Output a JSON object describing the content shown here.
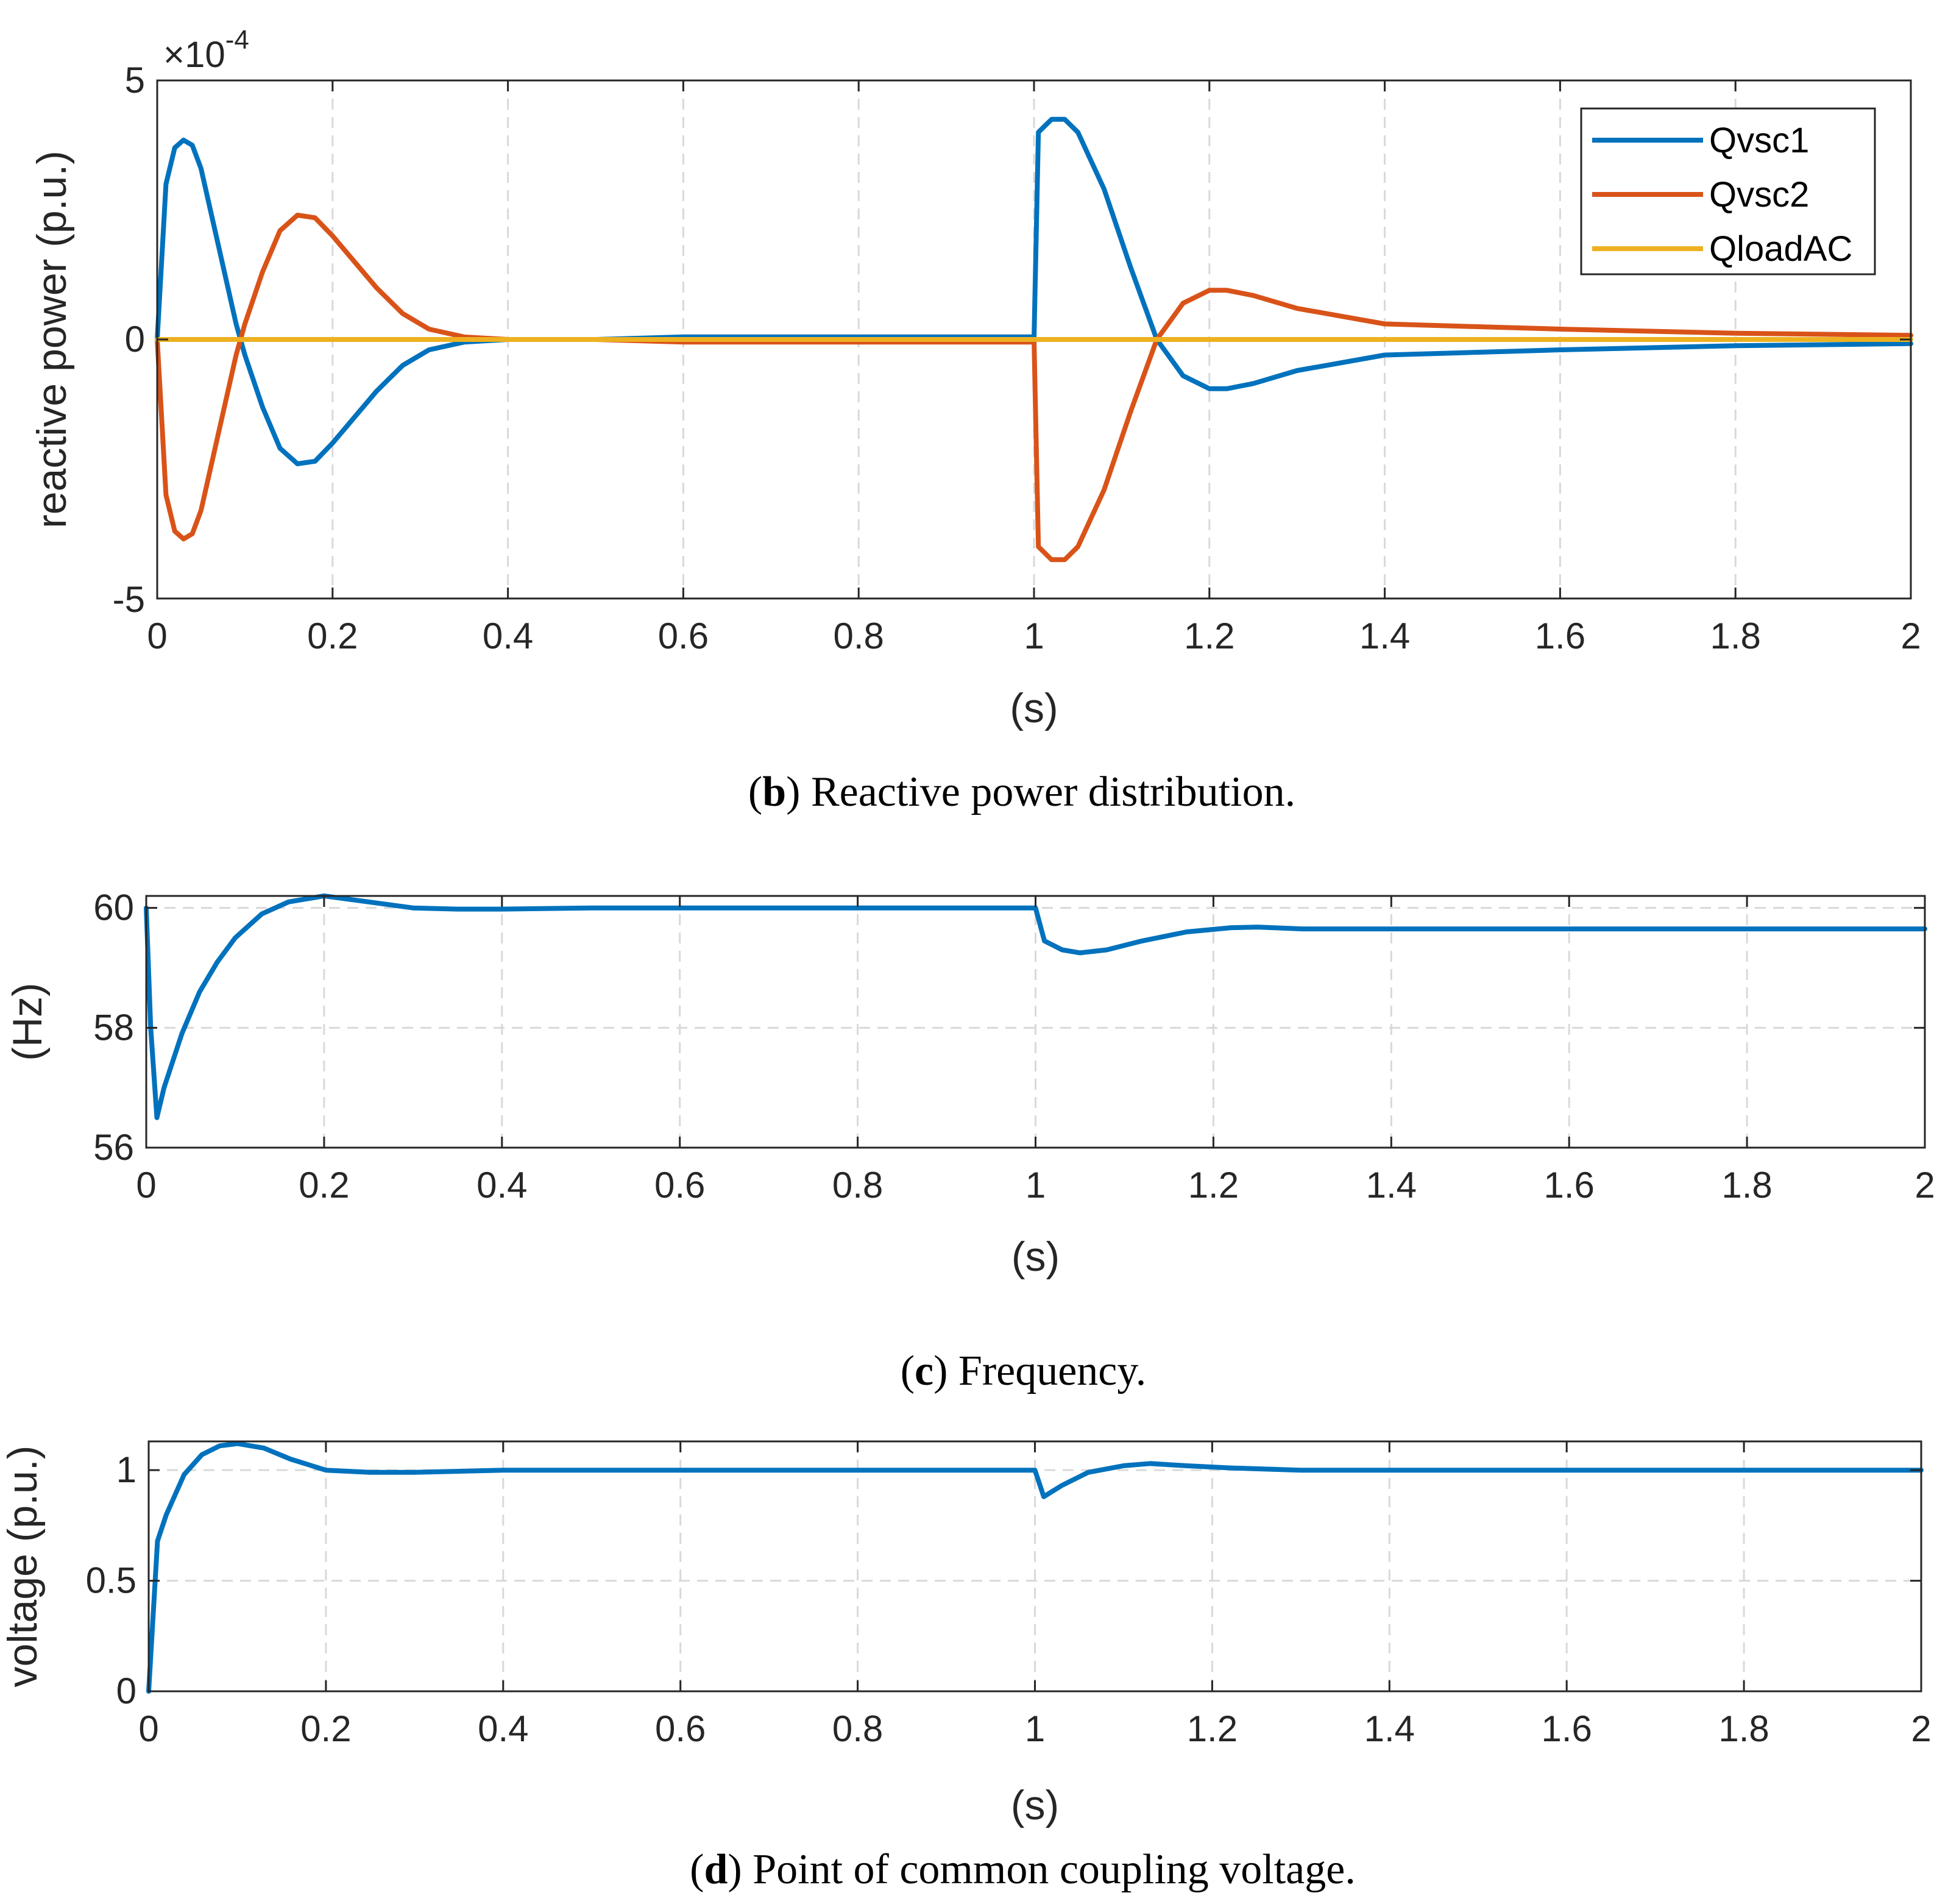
{
  "chart_data": [
    {
      "type": "line",
      "id": "b",
      "title": "",
      "caption": {
        "letter": "b",
        "text": "Reactive power distribution."
      },
      "xlabel": "(s)",
      "ylabel": "reactive power (p.u.)",
      "xlim": [
        0,
        2
      ],
      "ylim": [
        -5,
        5
      ],
      "exponent_label": "×10",
      "exponent_power": "-4",
      "xticks": [
        "0",
        "0.2",
        "0.4",
        "0.6",
        "0.8",
        "1",
        "1.2",
        "1.4",
        "1.6",
        "1.8",
        "2"
      ],
      "yticks": [
        "-5",
        "0",
        "5"
      ],
      "legend_position": "top-right",
      "series": [
        {
          "name": "Qvsc1",
          "color": "#0072BD",
          "x": [
            0,
            0.005,
            0.01,
            0.02,
            0.03,
            0.04,
            0.05,
            0.07,
            0.09,
            0.1,
            0.12,
            0.14,
            0.16,
            0.18,
            0.2,
            0.22,
            0.25,
            0.28,
            0.31,
            0.35,
            0.4,
            0.5,
            0.6,
            0.8,
            0.999,
            1.0,
            1.005,
            1.02,
            1.035,
            1.05,
            1.08,
            1.11,
            1.14,
            1.17,
            1.2,
            1.22,
            1.25,
            1.3,
            1.4,
            1.5,
            1.6,
            1.8,
            2.0
          ],
          "y": [
            0,
            1.5,
            3.0,
            3.7,
            3.85,
            3.75,
            3.3,
            1.8,
            0.3,
            -0.3,
            -1.3,
            -2.1,
            -2.4,
            -2.35,
            -2.0,
            -1.6,
            -1.0,
            -0.5,
            -0.2,
            -0.05,
            0.0,
            0.0,
            0.05,
            0.05,
            0.05,
            0.0,
            4.0,
            4.25,
            4.25,
            4.0,
            2.9,
            1.4,
            0.0,
            -0.7,
            -0.95,
            -0.95,
            -0.85,
            -0.6,
            -0.3,
            -0.25,
            -0.2,
            -0.12,
            -0.08
          ]
        },
        {
          "name": "Qvsc2",
          "color": "#D95319",
          "x": [
            0,
            0.005,
            0.01,
            0.02,
            0.03,
            0.04,
            0.05,
            0.07,
            0.09,
            0.1,
            0.12,
            0.14,
            0.16,
            0.18,
            0.2,
            0.22,
            0.25,
            0.28,
            0.31,
            0.35,
            0.4,
            0.5,
            0.6,
            0.8,
            0.999,
            1.0,
            1.005,
            1.02,
            1.035,
            1.05,
            1.08,
            1.11,
            1.14,
            1.17,
            1.2,
            1.22,
            1.25,
            1.3,
            1.4,
            1.5,
            1.6,
            1.8,
            2.0
          ],
          "y": [
            0,
            -1.5,
            -3.0,
            -3.7,
            -3.85,
            -3.75,
            -3.3,
            -1.8,
            -0.3,
            0.3,
            1.3,
            2.1,
            2.4,
            2.35,
            2.0,
            1.6,
            1.0,
            0.5,
            0.2,
            0.05,
            0.0,
            0.0,
            -0.05,
            -0.05,
            -0.05,
            0.0,
            -4.0,
            -4.25,
            -4.25,
            -4.0,
            -2.9,
            -1.4,
            0.0,
            0.7,
            0.95,
            0.95,
            0.85,
            0.6,
            0.3,
            0.25,
            0.2,
            0.12,
            0.08
          ]
        },
        {
          "name": "QloadAC",
          "color": "#EDB120",
          "x": [
            0,
            2.0
          ],
          "y": [
            0,
            0
          ]
        }
      ]
    },
    {
      "type": "line",
      "id": "c",
      "title": "",
      "caption": {
        "letter": "c",
        "text": "Frequency."
      },
      "xlabel": "(s)",
      "ylabel": "(Hz)",
      "xlim": [
        0,
        2
      ],
      "ylim": [
        56,
        60.2
      ],
      "xticks": [
        "0",
        "0.2",
        "0.4",
        "0.6",
        "0.8",
        "1",
        "1.2",
        "1.4",
        "1.6",
        "1.8",
        "2"
      ],
      "yticks": [
        "56",
        "58",
        "60"
      ],
      "series": [
        {
          "name": "frequency",
          "color": "#0072BD",
          "x": [
            0,
            0.005,
            0.012,
            0.02,
            0.04,
            0.06,
            0.08,
            0.1,
            0.13,
            0.16,
            0.2,
            0.25,
            0.3,
            0.35,
            0.4,
            0.5,
            0.7,
            0.999,
            1.0,
            1.01,
            1.03,
            1.05,
            1.08,
            1.12,
            1.17,
            1.22,
            1.25,
            1.3,
            1.4,
            1.6,
            1.8,
            2.0
          ],
          "y": [
            60,
            58.0,
            56.5,
            57.0,
            57.9,
            58.6,
            59.1,
            59.5,
            59.9,
            60.1,
            60.2,
            60.1,
            60.0,
            59.98,
            59.98,
            60.0,
            60.0,
            60.0,
            60.0,
            59.45,
            59.3,
            59.25,
            59.3,
            59.45,
            59.6,
            59.67,
            59.68,
            59.65,
            59.65,
            59.65,
            59.65,
            59.65
          ]
        }
      ]
    },
    {
      "type": "line",
      "id": "d",
      "title": "",
      "caption": {
        "letter": "d",
        "text": "Point of common coupling voltage."
      },
      "xlabel": "(s)",
      "ylabel": "voltage (p.u.)",
      "xlim": [
        0,
        2
      ],
      "ylim": [
        0,
        1.13
      ],
      "xticks": [
        "0",
        "0.2",
        "0.4",
        "0.6",
        "0.8",
        "1",
        "1.2",
        "1.4",
        "1.6",
        "1.8",
        "2"
      ],
      "yticks": [
        "0",
        "0.5",
        "1"
      ],
      "series": [
        {
          "name": "voltage",
          "color": "#0072BD",
          "x": [
            0,
            0.01,
            0.02,
            0.04,
            0.06,
            0.08,
            0.1,
            0.13,
            0.16,
            0.2,
            0.25,
            0.3,
            0.4,
            0.6,
            0.999,
            1.0,
            1.01,
            1.03,
            1.06,
            1.1,
            1.13,
            1.17,
            1.22,
            1.3,
            1.5,
            2.0
          ],
          "y": [
            0,
            0.68,
            0.8,
            0.98,
            1.07,
            1.11,
            1.12,
            1.1,
            1.05,
            1.0,
            0.99,
            0.99,
            1.0,
            1.0,
            1.0,
            1.0,
            0.88,
            0.93,
            0.99,
            1.02,
            1.03,
            1.02,
            1.01,
            1.0,
            1.0,
            1.0
          ]
        }
      ]
    }
  ]
}
